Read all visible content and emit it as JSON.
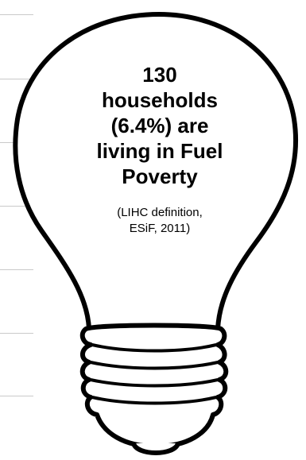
{
  "headline": {
    "line1": "130",
    "line2": "households",
    "line3": "(6.4%) are",
    "line4": "living in Fuel",
    "line5": "Poverty"
  },
  "source": {
    "line1": "(LIHC definition,",
    "line2": "ESiF, 2011)"
  },
  "colors": {
    "bulb_fill": "#ffffff",
    "bulb_outline": "#000000",
    "text": "#000000",
    "guide_lines": "#c9c9c9"
  },
  "icons": [
    "light-bulb-icon"
  ]
}
